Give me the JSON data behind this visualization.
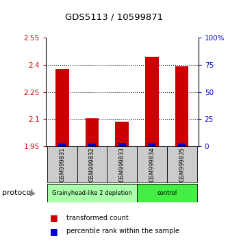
{
  "title": "GDS5113 / 10599871",
  "samples": [
    "GSM999831",
    "GSM999832",
    "GSM999833",
    "GSM999834",
    "GSM999835"
  ],
  "transformed_counts": [
    2.375,
    2.105,
    2.085,
    2.445,
    2.39
  ],
  "percentile_ranks": [
    2.5,
    2.5,
    3.0,
    2.5,
    2.5
  ],
  "baseline": 1.95,
  "ylim_left": [
    1.95,
    2.55
  ],
  "ylim_right": [
    0,
    100
  ],
  "left_ticks": [
    1.95,
    2.1,
    2.25,
    2.4,
    2.55
  ],
  "right_ticks": [
    0,
    25,
    50,
    75,
    100
  ],
  "bar_color_red": "#cc0000",
  "bar_color_blue": "#0000cc",
  "groups": [
    {
      "label": "Grainyhead-like 2 depletion",
      "samples": [
        0,
        1,
        2
      ],
      "color": "#aaffaa"
    },
    {
      "label": "control",
      "samples": [
        3,
        4
      ],
      "color": "#44ee44"
    }
  ],
  "tick_label_color_left": "#cc0000",
  "tick_label_color_right": "#0000cc",
  "bg_color": "#ffffff",
  "sample_box_color": "#cccccc"
}
